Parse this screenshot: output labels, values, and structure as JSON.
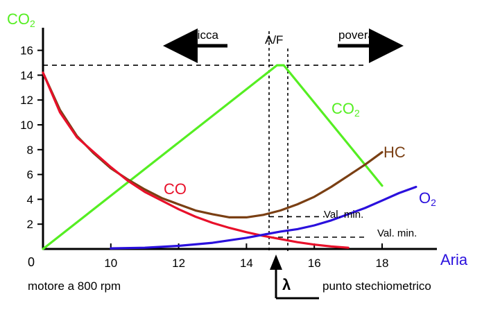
{
  "chart_data": {
    "type": "line",
    "title": "",
    "ylabel_main": "CO",
    "ylabel_sub": "2",
    "xlabel": "Aria",
    "origin_label": "0",
    "xlim": [
      8,
      19.5
    ],
    "ylim": [
      0,
      17
    ],
    "x_ticks": [
      10,
      12,
      14,
      16,
      18
    ],
    "y_ticks": [
      2,
      4,
      6,
      8,
      10,
      12,
      14,
      16
    ],
    "annotations": {
      "rich": "ricca",
      "lean": "povera",
      "af": "A/F",
      "motor": "motore a 800 rpm",
      "lambda_symbol": "λ",
      "stoich": "punto stechiometrico",
      "valmin_1": "Val. min.",
      "valmin_2": "Val. min."
    },
    "series": [
      {
        "name": "CO2",
        "label_main": "CO",
        "label_sub": "2",
        "color": "#55ee22",
        "x": [
          8,
          14.9,
          15.1,
          18
        ],
        "y": [
          0,
          14.8,
          14.8,
          5.1
        ]
      },
      {
        "name": "HC",
        "label_main": "HC",
        "label_sub": "",
        "color": "#7a3f13",
        "x": [
          8,
          8.5,
          9,
          9.5,
          10,
          10.5,
          11,
          11.5,
          12,
          12.5,
          13,
          13.5,
          14,
          14.5,
          15,
          15.5,
          16,
          16.5,
          17,
          17.5,
          18
        ],
        "y": [
          14.2,
          11.2,
          9.1,
          7.7,
          6.5,
          5.6,
          4.8,
          4.1,
          3.6,
          3.1,
          2.8,
          2.55,
          2.55,
          2.75,
          3.1,
          3.6,
          4.2,
          5.0,
          5.9,
          6.8,
          7.8
        ]
      },
      {
        "name": "CO",
        "label_main": "CO",
        "label_sub": "",
        "color": "#e8102a",
        "x": [
          8,
          8.5,
          9,
          9.5,
          10,
          10.5,
          11,
          11.5,
          12,
          12.5,
          13,
          13.5,
          14,
          14.5,
          15,
          15.5,
          16,
          16.5,
          17
        ],
        "y": [
          14.2,
          11.0,
          9.0,
          7.8,
          6.6,
          5.5,
          4.6,
          3.9,
          3.2,
          2.6,
          2.1,
          1.7,
          1.35,
          1.05,
          0.8,
          0.55,
          0.35,
          0.2,
          0.1
        ]
      },
      {
        "name": "O2",
        "label_main": "O",
        "label_sub": "2",
        "color": "#2a10dd",
        "x": [
          10,
          11,
          12,
          13,
          14,
          15,
          15.5,
          16,
          16.5,
          17,
          17.5,
          18,
          18.5,
          19
        ],
        "y": [
          0.05,
          0.1,
          0.25,
          0.5,
          0.9,
          1.4,
          1.6,
          1.9,
          2.3,
          2.8,
          3.3,
          3.9,
          4.5,
          5.0
        ]
      }
    ],
    "stoich_x": 15,
    "vertical_lines_x": [
      14.7,
      15.3
    ],
    "peak_y": 14.8,
    "valmin_y": [
      2.6,
      0.95
    ]
  }
}
